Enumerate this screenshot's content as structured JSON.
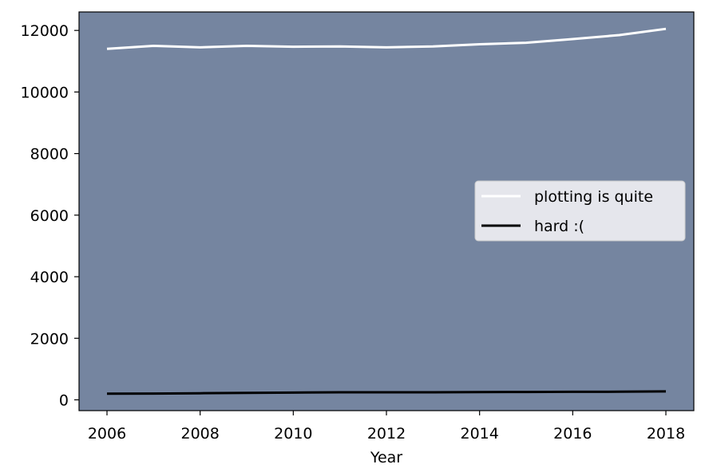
{
  "chart_data": {
    "type": "line",
    "title": "",
    "xlabel": "Year",
    "ylabel": "",
    "x": [
      2006,
      2007,
      2008,
      2009,
      2010,
      2011,
      2012,
      2013,
      2014,
      2015,
      2016,
      2017,
      2018
    ],
    "xlim": [
      2005.4,
      2018.6
    ],
    "ylim": [
      -350,
      12600
    ],
    "xticks": [
      2006,
      2008,
      2010,
      2012,
      2014,
      2016,
      2018
    ],
    "yticks": [
      0,
      2000,
      4000,
      6000,
      8000,
      10000,
      12000
    ],
    "grid": false,
    "legend_position": "center-right",
    "plot_background": "#7585a0",
    "series": [
      {
        "name": "plotting is quite",
        "color": "#ffffff",
        "values": [
          11400,
          11500,
          11450,
          11500,
          11470,
          11480,
          11450,
          11480,
          11550,
          11600,
          11720,
          11850,
          12050
        ]
      },
      {
        "name": "hard :(",
        "color": "#000000",
        "values": [
          200,
          205,
          215,
          225,
          235,
          245,
          245,
          245,
          250,
          255,
          260,
          265,
          275
        ]
      }
    ]
  }
}
